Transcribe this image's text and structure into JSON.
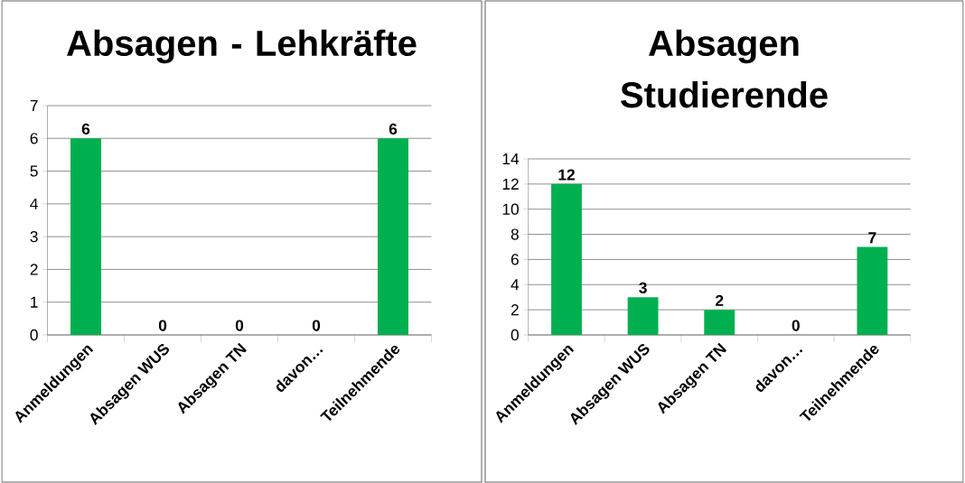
{
  "chart_data": [
    {
      "type": "bar",
      "title": "Absagen - Lehkräfte",
      "categories": [
        "Anmeldungen",
        "Absagen WUS",
        "Absagen TN",
        "davon…",
        "Teilnehmende"
      ],
      "values": [
        6,
        0,
        0,
        0,
        6
      ],
      "color": "#00b050",
      "ylim": [
        0,
        7
      ],
      "yticks": [
        0,
        1,
        2,
        3,
        4,
        5,
        6,
        7
      ],
      "grid": "y",
      "data_labels": true
    },
    {
      "type": "bar",
      "title": "Absagen Studierende",
      "categories": [
        "Anmeldungen",
        "Absagen WUS",
        "Absagen TN",
        "davon…",
        "Teilnehmende"
      ],
      "values": [
        12,
        3,
        2,
        0,
        7
      ],
      "color": "#00b050",
      "ylim": [
        0,
        14
      ],
      "yticks": [
        0,
        2,
        4,
        6,
        8,
        10,
        12,
        14
      ],
      "grid": "y",
      "data_labels": true
    }
  ]
}
